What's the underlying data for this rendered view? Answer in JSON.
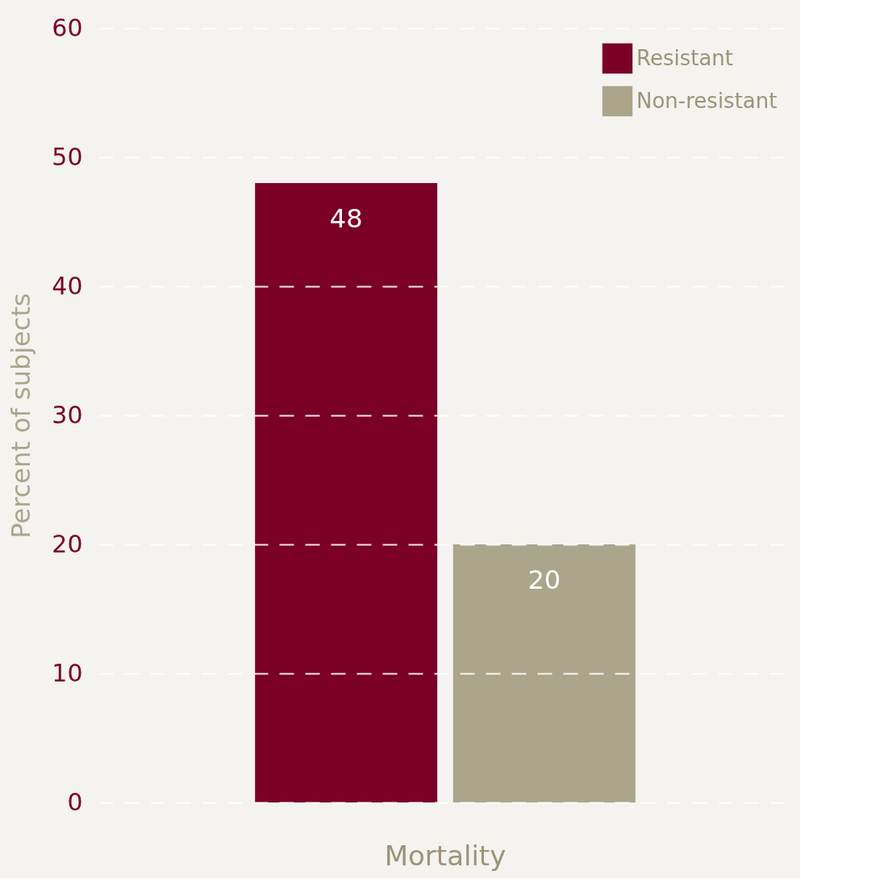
{
  "chart_data": {
    "type": "bar",
    "ylabel": "Percent of subjects",
    "categories": [
      "Mortality"
    ],
    "series": [
      {
        "name": "Resistant",
        "color": "#7a0028",
        "values": [
          48
        ]
      },
      {
        "name": "Non-resistant",
        "color": "#aaa58b",
        "values": [
          20
        ]
      }
    ],
    "ylim": [
      0,
      60
    ],
    "yticks": [
      0,
      10,
      20,
      30,
      40,
      50,
      60
    ],
    "grid": "y",
    "legend": "top right",
    "data_labels": true
  }
}
